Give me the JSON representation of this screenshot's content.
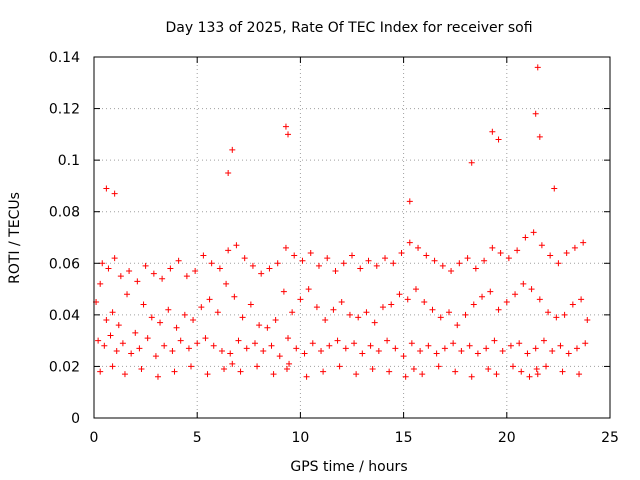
{
  "chart_data": {
    "type": "scatter",
    "title": "Day 133 of 2025, Rate Of TEC Index for receiver sofi",
    "xlabel": "GPS time / hours",
    "ylabel": "ROTI / TECUs",
    "xlim": [
      0,
      25
    ],
    "ylim": [
      0,
      0.14
    ],
    "xticks": [
      0,
      5,
      10,
      15,
      20,
      25
    ],
    "yticks": [
      0,
      0.02,
      0.04,
      0.06,
      0.08,
      0.1,
      0.12,
      0.14
    ],
    "xtick_labels": [
      "0",
      "5",
      "10",
      "15",
      "20",
      "25"
    ],
    "ytick_labels": [
      "0",
      "0.02",
      "0.04",
      "0.06",
      "0.08",
      "0.1",
      "0.12",
      "0.14"
    ],
    "grid": true,
    "marker": "plus",
    "color": "#ff0000",
    "series": [
      {
        "x": [
          0.1,
          0.3,
          0.6,
          0.9,
          1.2,
          1.6,
          2.0,
          2.4,
          2.8,
          3.2,
          3.6,
          4.0,
          4.4,
          4.8,
          5.2,
          5.6,
          6.0,
          6.4,
          6.8,
          7.2,
          7.6,
          8.0,
          8.4,
          8.8,
          9.2,
          9.6,
          10.0,
          10.4,
          10.8,
          11.2,
          11.6,
          12.0,
          12.4,
          12.8,
          13.2,
          13.6,
          14.0,
          14.4,
          14.8,
          15.2,
          15.6,
          16.0,
          16.4,
          16.8,
          17.2,
          17.6,
          18.0,
          18.4,
          18.8,
          19.2,
          19.6,
          20.0,
          20.4,
          20.8,
          21.2,
          21.6,
          22.0,
          22.4,
          22.8,
          23.2,
          23.6,
          23.9,
          0.2,
          0.5,
          0.8,
          1.1,
          1.4,
          1.8,
          2.2,
          2.6,
          3.0,
          3.4,
          3.8,
          4.2,
          4.6,
          5.0,
          5.4,
          5.8,
          6.2,
          6.6,
          7.0,
          7.4,
          7.8,
          8.2,
          8.6,
          9.0,
          9.4,
          9.8,
          10.2,
          10.6,
          11.0,
          11.4,
          11.8,
          12.2,
          12.6,
          13.0,
          13.4,
          13.8,
          14.2,
          14.6,
          15.0,
          15.4,
          15.8,
          16.2,
          16.6,
          17.0,
          17.4,
          17.8,
          18.2,
          18.6,
          19.0,
          19.4,
          19.8,
          20.2,
          20.6,
          21.0,
          21.4,
          21.8,
          22.2,
          22.6,
          23.0,
          23.4,
          23.8,
          0.4,
          0.7,
          1.0,
          1.3,
          1.7,
          2.1,
          2.5,
          2.9,
          3.3,
          3.7,
          4.1,
          4.5,
          4.9,
          5.3,
          5.7,
          6.1,
          6.5,
          6.9,
          7.3,
          7.7,
          8.1,
          8.5,
          8.9,
          9.3,
          9.7,
          10.1,
          10.5,
          10.9,
          11.3,
          11.7,
          12.1,
          12.5,
          12.9,
          13.3,
          13.7,
          14.1,
          14.5,
          14.9,
          15.3,
          15.7,
          16.1,
          16.5,
          16.9,
          17.3,
          17.7,
          18.1,
          18.5,
          18.9,
          19.3,
          19.7,
          20.1,
          20.5,
          20.9,
          21.3,
          21.7,
          22.1,
          22.5,
          22.9,
          23.3,
          23.7,
          0.3,
          0.9,
          1.5,
          2.3,
          3.1,
          3.9,
          4.7,
          5.5,
          6.3,
          6.7,
          7.1,
          7.9,
          8.7,
          9.35,
          9.45,
          10.3,
          11.1,
          11.9,
          12.7,
          13.5,
          14.3,
          15.1,
          15.5,
          15.9,
          16.7,
          17.5,
          18.3,
          19.1,
          19.5,
          20.3,
          20.7,
          21.1,
          21.45,
          21.5,
          21.9,
          22.7,
          23.5,
          6.7,
          9.3,
          9.4,
          19.3,
          19.6,
          18.3,
          21.4,
          21.5,
          21.6,
          22.3,
          15.3,
          6.5,
          0.6,
          1.0
        ],
        "y": [
          0.045,
          0.052,
          0.038,
          0.041,
          0.036,
          0.048,
          0.033,
          0.044,
          0.039,
          0.037,
          0.042,
          0.035,
          0.04,
          0.038,
          0.043,
          0.046,
          0.041,
          0.052,
          0.047,
          0.039,
          0.044,
          0.036,
          0.035,
          0.038,
          0.049,
          0.041,
          0.046,
          0.05,
          0.043,
          0.038,
          0.042,
          0.045,
          0.04,
          0.039,
          0.041,
          0.037,
          0.043,
          0.044,
          0.048,
          0.046,
          0.05,
          0.045,
          0.042,
          0.039,
          0.041,
          0.036,
          0.04,
          0.044,
          0.047,
          0.049,
          0.042,
          0.045,
          0.048,
          0.052,
          0.05,
          0.046,
          0.041,
          0.039,
          0.04,
          0.044,
          0.046,
          0.038,
          0.03,
          0.028,
          0.032,
          0.026,
          0.029,
          0.025,
          0.027,
          0.031,
          0.024,
          0.028,
          0.026,
          0.03,
          0.027,
          0.029,
          0.031,
          0.028,
          0.026,
          0.025,
          0.03,
          0.027,
          0.029,
          0.026,
          0.028,
          0.024,
          0.031,
          0.027,
          0.025,
          0.029,
          0.026,
          0.028,
          0.03,
          0.027,
          0.029,
          0.025,
          0.028,
          0.026,
          0.03,
          0.027,
          0.024,
          0.029,
          0.026,
          0.028,
          0.025,
          0.027,
          0.029,
          0.026,
          0.028,
          0.025,
          0.027,
          0.03,
          0.026,
          0.028,
          0.029,
          0.025,
          0.027,
          0.03,
          0.026,
          0.028,
          0.025,
          0.027,
          0.029,
          0.06,
          0.058,
          0.062,
          0.055,
          0.057,
          0.053,
          0.059,
          0.056,
          0.054,
          0.058,
          0.061,
          0.055,
          0.057,
          0.063,
          0.06,
          0.058,
          0.065,
          0.067,
          0.062,
          0.059,
          0.056,
          0.058,
          0.06,
          0.066,
          0.063,
          0.061,
          0.064,
          0.059,
          0.062,
          0.057,
          0.06,
          0.063,
          0.058,
          0.061,
          0.059,
          0.062,
          0.06,
          0.064,
          0.068,
          0.066,
          0.063,
          0.061,
          0.059,
          0.057,
          0.06,
          0.062,
          0.058,
          0.061,
          0.066,
          0.064,
          0.062,
          0.065,
          0.07,
          0.072,
          0.067,
          0.063,
          0.06,
          0.064,
          0.066,
          0.068,
          0.018,
          0.02,
          0.017,
          0.019,
          0.016,
          0.018,
          0.02,
          0.017,
          0.019,
          0.021,
          0.018,
          0.02,
          0.017,
          0.019,
          0.021,
          0.016,
          0.018,
          0.02,
          0.017,
          0.019,
          0.018,
          0.016,
          0.019,
          0.017,
          0.02,
          0.018,
          0.016,
          0.019,
          0.017,
          0.02,
          0.018,
          0.016,
          0.019,
          0.017,
          0.02,
          0.018,
          0.017,
          0.104,
          0.113,
          0.11,
          0.111,
          0.108,
          0.099,
          0.118,
          0.136,
          0.109,
          0.089,
          0.084,
          0.095,
          0.089,
          0.087
        ]
      }
    ]
  }
}
